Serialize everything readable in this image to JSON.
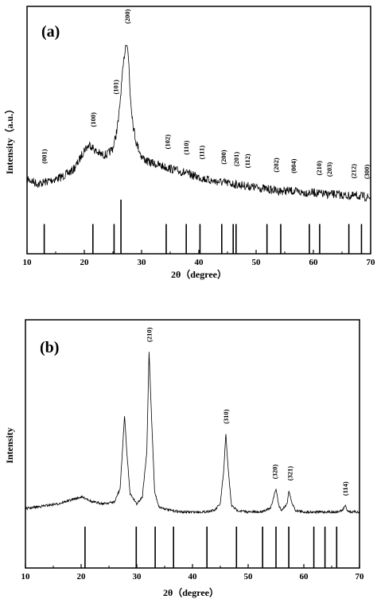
{
  "chart_data": [
    {
      "type": "line",
      "panel_label": "(a)",
      "xlabel": "2θ（degree）",
      "ylabel": "Intensity（a.u.）",
      "xlim": [
        10,
        70
      ],
      "xticks": [
        10,
        20,
        30,
        40,
        50,
        60,
        70
      ],
      "series": [
        {
          "x": [
            10,
            12,
            14,
            16,
            18,
            19,
            20,
            21,
            22,
            23,
            24,
            25,
            25.5,
            26,
            26.5,
            27,
            27.3,
            27.5,
            27.8,
            28,
            28.5,
            29,
            30,
            31,
            32,
            34,
            36,
            38,
            40,
            42,
            44,
            46,
            48,
            50,
            52,
            54,
            56,
            58,
            60,
            62,
            64,
            66,
            68,
            70
          ],
          "y": [
            20,
            17,
            19,
            21,
            25,
            30,
            37,
            40,
            36,
            34,
            34,
            38,
            45,
            55,
            75,
            92,
            100,
            98,
            86,
            70,
            52,
            42,
            33,
            30,
            29,
            27,
            25,
            23,
            21,
            19,
            18,
            17,
            16,
            15,
            14,
            13,
            13,
            12,
            12,
            11,
            11,
            10,
            10,
            9
          ]
        }
      ],
      "peaks": [
        {
          "label": "(001)",
          "x": 13.0
        },
        {
          "label": "(100)",
          "x": 21.5
        },
        {
          "label": "(101)",
          "x": 25.5
        },
        {
          "label": "(200)",
          "x": 27.5
        },
        {
          "label": "(102)",
          "x": 34.5
        },
        {
          "label": "(110)",
          "x": 37.8
        },
        {
          "label": "(111)",
          "x": 40.5
        },
        {
          "label": "(200)",
          "x": 44.3
        },
        {
          "label": "(201)",
          "x": 46.5
        },
        {
          "label": "(112)",
          "x": 48.5
        },
        {
          "label": "(202)",
          "x": 53.5
        },
        {
          "label": "(004)",
          "x": 56.5
        },
        {
          "label": "(210)",
          "x": 61.0
        },
        {
          "label": "(203)",
          "x": 62.8
        },
        {
          "label": "(212)",
          "x": 67.0
        },
        {
          "label": "(300)",
          "x": 69.3
        }
      ],
      "reference_lines": [
        {
          "x": 13.0,
          "h": 0.55
        },
        {
          "x": 21.5,
          "h": 0.55
        },
        {
          "x": 25.2,
          "h": 0.55
        },
        {
          "x": 26.4,
          "h": 1.0
        },
        {
          "x": 34.3,
          "h": 0.55
        },
        {
          "x": 37.8,
          "h": 0.55
        },
        {
          "x": 40.2,
          "h": 0.55
        },
        {
          "x": 44.0,
          "h": 0.55
        },
        {
          "x": 46.0,
          "h": 0.55
        },
        {
          "x": 46.5,
          "h": 0.55
        },
        {
          "x": 51.9,
          "h": 0.55
        },
        {
          "x": 54.3,
          "h": 0.55
        },
        {
          "x": 59.3,
          "h": 0.55
        },
        {
          "x": 61.1,
          "h": 0.55
        },
        {
          "x": 66.2,
          "h": 0.55
        },
        {
          "x": 68.4,
          "h": 0.55
        }
      ]
    },
    {
      "type": "line",
      "panel_label": "(b)",
      "xlabel": "2θ（degree）",
      "ylabel": "Intensity",
      "xlim": [
        10,
        70
      ],
      "xticks": [
        10,
        20,
        30,
        40,
        50,
        60,
        70
      ],
      "series": [
        {
          "x": [
            10,
            12,
            14,
            16,
            18,
            20,
            21,
            22,
            24,
            26,
            27,
            27.5,
            27.8,
            28.2,
            28.8,
            30,
            31,
            31.8,
            32.2,
            32.6,
            33.2,
            34,
            36,
            38,
            40,
            42,
            44,
            45,
            45.6,
            46,
            46.4,
            47,
            48,
            50,
            52,
            54,
            54.6,
            55,
            55.5,
            56,
            57,
            57.3,
            57.8,
            58.5,
            60,
            62,
            64,
            66,
            67,
            67.4,
            67.8,
            68.5,
            70
          ],
          "y": [
            6,
            7,
            8,
            9,
            11,
            13,
            12,
            10,
            9,
            10,
            18,
            45,
            62,
            40,
            15,
            9,
            13,
            40,
            100,
            65,
            16,
            7,
            5,
            4,
            4,
            4,
            5,
            9,
            28,
            51,
            30,
            8,
            5,
            4,
            4,
            6,
            13,
            18,
            8,
            5,
            9,
            17,
            10,
            5,
            4,
            4,
            4,
            4,
            5,
            8,
            5,
            4,
            4
          ]
        }
      ],
      "peaks": [
        {
          "label": "(210)",
          "x": 32.2
        },
        {
          "label": "(310)",
          "x": 46.0
        },
        {
          "label": "(320)",
          "x": 54.8
        },
        {
          "label": "(321)",
          "x": 57.5
        },
        {
          "label": "(114)",
          "x": 67.4
        }
      ],
      "reference_lines": [
        {
          "x": 20.7
        },
        {
          "x": 29.9
        },
        {
          "x": 33.3
        },
        {
          "x": 36.6
        },
        {
          "x": 42.6
        },
        {
          "x": 47.9
        },
        {
          "x": 52.6
        },
        {
          "x": 55.0
        },
        {
          "x": 57.3
        },
        {
          "x": 61.8
        },
        {
          "x": 63.8
        },
        {
          "x": 65.9
        }
      ]
    }
  ]
}
